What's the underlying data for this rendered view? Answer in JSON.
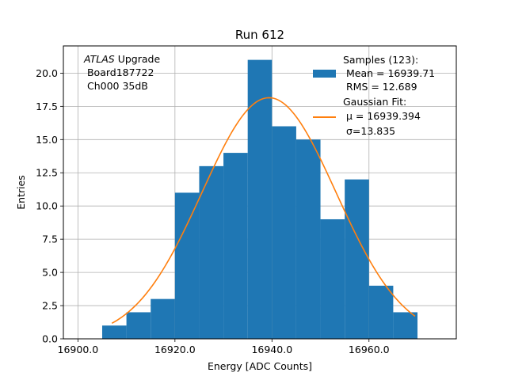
{
  "chart_data": {
    "type": "bar",
    "title": "Run 612",
    "xlabel": "Energy [ADC Counts]",
    "ylabel": "Entries",
    "xlim": [
      16897,
      16978
    ],
    "ylim": [
      0,
      22.05
    ],
    "grid": true,
    "x_ticks": [
      16900,
      16920,
      16940,
      16960
    ],
    "x_tick_labels": [
      "16900.0",
      "16920.0",
      "16940.0",
      "16960.0"
    ],
    "y_ticks": [
      0,
      2.5,
      5,
      7.5,
      10,
      12.5,
      15,
      17.5,
      20
    ],
    "y_tick_labels": [
      "0.0",
      "2.5",
      "5.0",
      "7.5",
      "10.0",
      "12.5",
      "15.0",
      "17.5",
      "20.0"
    ],
    "bin_edges": [
      16905,
      16910,
      16915,
      16920,
      16925,
      16930,
      16935,
      16940,
      16945,
      16950,
      16955,
      16960,
      16965,
      16970
    ],
    "counts": [
      1,
      2,
      3,
      11,
      13,
      14,
      21,
      16,
      15,
      9,
      12,
      4,
      2
    ],
    "fit": {
      "mu": 16939.394,
      "sigma": 13.835,
      "amplitude": 18.15,
      "x_range": [
        16907,
        16969.5
      ]
    },
    "series_colors": {
      "histogram": "#1f77b4",
      "fit": "#ff7f0e"
    },
    "legend": {
      "placement": "top-right",
      "hist_lines": [
        "Samples (123):",
        " Mean = 16939.71",
        " RMS = 12.689"
      ],
      "fit_lines": [
        "Gaussian Fit:",
        " μ = 16939.394",
        " σ=13.835"
      ]
    },
    "annotation": {
      "placement": "top-left",
      "line1_italic": "ATLAS",
      "line1_rest": " Upgrade",
      "line2": " Board187722",
      "line3": " Ch000 35dB"
    }
  }
}
